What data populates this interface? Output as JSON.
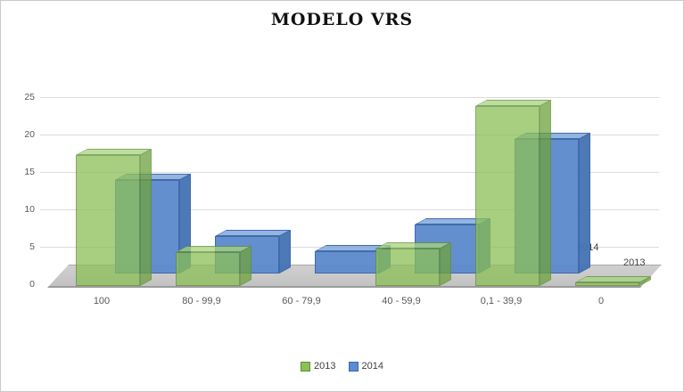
{
  "title": "MODELO VRS",
  "chart_data": {
    "type": "bar",
    "projection": "3d",
    "title": "MODELO VRS",
    "categories": [
      "100",
      "80 - 99,9",
      "60 - 79,9",
      "40 - 59,9",
      "0,1 - 39,9",
      "0"
    ],
    "series": [
      {
        "name": "2014",
        "row": "back",
        "values": [
          12.5,
          5,
          3,
          6.5,
          18,
          0
        ],
        "opacity": 0.96,
        "colors": {
          "front": "#5d8bcd",
          "top": "#8fb2e0",
          "side": "#4674b5",
          "stroke": "#3a66a8"
        }
      },
      {
        "name": "2013",
        "row": "front",
        "values": [
          17.5,
          4.5,
          0,
          5,
          24,
          0.5
        ],
        "opacity": 0.76,
        "colors": {
          "front": "#8cc057",
          "top": "#a9d47e",
          "side": "#6fa23f",
          "stroke": "#5e8f37"
        }
      }
    ],
    "ylim": [
      0,
      25
    ],
    "yticks": [
      0,
      5,
      10,
      15,
      20,
      25
    ],
    "depth_labels": [
      "2014",
      "2013"
    ],
    "legend": [
      "2013",
      "2014"
    ],
    "legend_position": "bottom",
    "grid": true
  }
}
